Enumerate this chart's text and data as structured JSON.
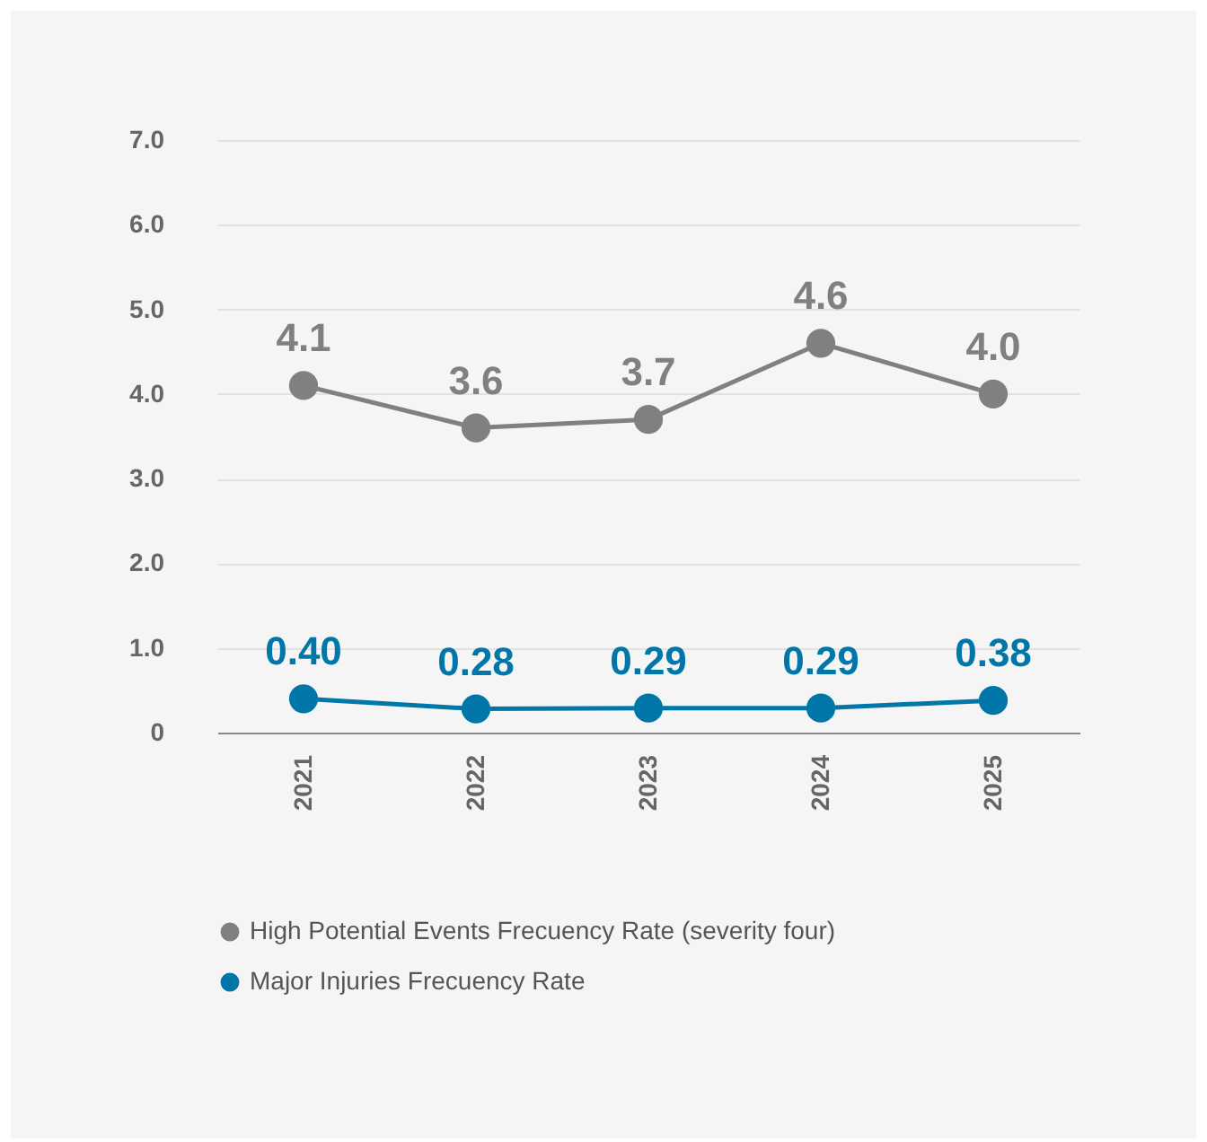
{
  "chart_data": {
    "type": "line",
    "categories": [
      "2021",
      "2022",
      "2023",
      "2024",
      "2025"
    ],
    "ylim": [
      0,
      7
    ],
    "yticks": [
      0,
      {
        "value": 1,
        "label": "1.0"
      },
      {
        "value": 2,
        "label": "2.0"
      },
      {
        "value": 3,
        "label": "3.0"
      },
      {
        "value": 4,
        "label": "4.0"
      },
      {
        "value": 5,
        "label": "5.0"
      },
      {
        "value": 6,
        "label": "6.0"
      },
      {
        "value": 7,
        "label": "7.0"
      }
    ],
    "grid": "y",
    "legend": "bottom",
    "marker": "circle",
    "line_style": "solid",
    "series": [
      {
        "name": "High Potential Events Frecuency Rate (severity four)",
        "color": "#808080",
        "values": [
          4.1,
          3.6,
          3.7,
          4.6,
          4.0
        ],
        "value_labels": [
          "4.1",
          "3.6",
          "3.7",
          "4.6",
          "4.0"
        ]
      },
      {
        "name": "Major Injuries Frecuency Rate",
        "color": "#0077a8",
        "values": [
          0.4,
          0.28,
          0.29,
          0.29,
          0.38
        ],
        "value_labels": [
          "0.40",
          "0.28",
          "0.29",
          "0.29",
          "0.38"
        ]
      }
    ]
  }
}
